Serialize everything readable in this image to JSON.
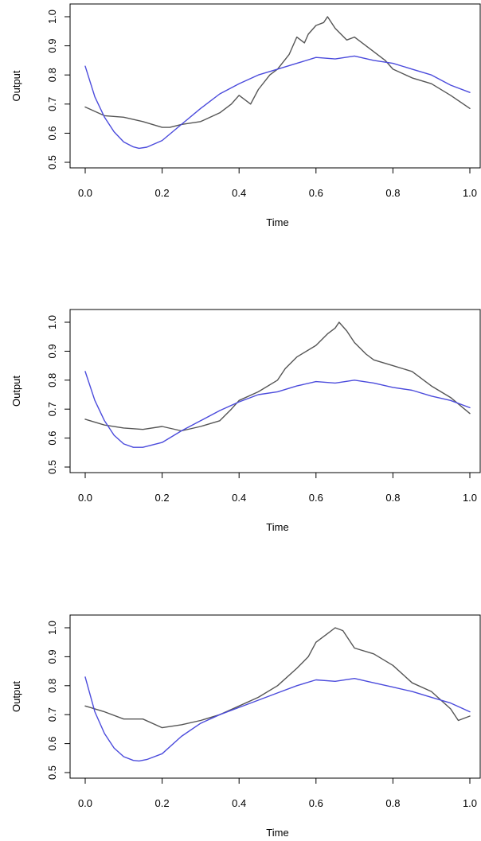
{
  "chart_data": [
    {
      "type": "line",
      "xlabel": "Time",
      "ylabel": "Output",
      "xlim": [
        0,
        1
      ],
      "ylim": [
        0.5,
        1.0
      ],
      "xticks": [
        "0.0",
        "0.2",
        "0.4",
        "0.6",
        "0.8",
        "1.0"
      ],
      "yticks": [
        "0.5",
        "0.6",
        "0.7",
        "0.8",
        "0.9",
        "1.0"
      ],
      "grid": false,
      "series": [
        {
          "color": "#555555",
          "x": [
            0.0,
            0.05,
            0.1,
            0.15,
            0.2,
            0.22,
            0.25,
            0.3,
            0.35,
            0.38,
            0.4,
            0.43,
            0.45,
            0.48,
            0.5,
            0.53,
            0.55,
            0.57,
            0.58,
            0.6,
            0.62,
            0.63,
            0.65,
            0.68,
            0.7,
            0.72,
            0.75,
            0.78,
            0.8,
            0.85,
            0.9,
            0.95,
            1.0
          ],
          "y": [
            0.69,
            0.66,
            0.655,
            0.64,
            0.62,
            0.62,
            0.63,
            0.64,
            0.67,
            0.7,
            0.73,
            0.7,
            0.75,
            0.8,
            0.82,
            0.87,
            0.93,
            0.91,
            0.94,
            0.97,
            0.98,
            1.0,
            0.96,
            0.92,
            0.93,
            0.91,
            0.88,
            0.85,
            0.82,
            0.79,
            0.77,
            0.73,
            0.685
          ]
        },
        {
          "color": "#4b4bdc",
          "x": [
            0.0,
            0.025,
            0.05,
            0.075,
            0.1,
            0.125,
            0.14,
            0.16,
            0.2,
            0.25,
            0.3,
            0.35,
            0.4,
            0.45,
            0.5,
            0.55,
            0.6,
            0.65,
            0.7,
            0.75,
            0.8,
            0.85,
            0.9,
            0.95,
            1.0
          ],
          "y": [
            0.83,
            0.725,
            0.655,
            0.605,
            0.57,
            0.553,
            0.548,
            0.552,
            0.575,
            0.63,
            0.685,
            0.735,
            0.77,
            0.8,
            0.82,
            0.84,
            0.86,
            0.855,
            0.865,
            0.85,
            0.84,
            0.82,
            0.8,
            0.765,
            0.74
          ]
        }
      ]
    },
    {
      "type": "line",
      "xlabel": "Time",
      "ylabel": "Output",
      "xlim": [
        0,
        1
      ],
      "ylim": [
        0.5,
        1.0
      ],
      "xticks": [
        "0.0",
        "0.2",
        "0.4",
        "0.6",
        "0.8",
        "1.0"
      ],
      "yticks": [
        "0.5",
        "0.6",
        "0.7",
        "0.8",
        "0.9",
        "1.0"
      ],
      "grid": false,
      "series": [
        {
          "color": "#555555",
          "x": [
            0.0,
            0.05,
            0.1,
            0.15,
            0.2,
            0.25,
            0.3,
            0.35,
            0.38,
            0.4,
            0.45,
            0.5,
            0.52,
            0.55,
            0.6,
            0.63,
            0.65,
            0.66,
            0.68,
            0.7,
            0.73,
            0.75,
            0.8,
            0.85,
            0.9,
            0.95,
            1.0
          ],
          "y": [
            0.665,
            0.645,
            0.635,
            0.63,
            0.64,
            0.625,
            0.64,
            0.66,
            0.7,
            0.73,
            0.76,
            0.8,
            0.84,
            0.88,
            0.92,
            0.96,
            0.98,
            1.0,
            0.97,
            0.93,
            0.89,
            0.87,
            0.85,
            0.83,
            0.78,
            0.74,
            0.685
          ]
        },
        {
          "color": "#4b4bdc",
          "x": [
            0.0,
            0.025,
            0.05,
            0.075,
            0.1,
            0.125,
            0.15,
            0.2,
            0.25,
            0.3,
            0.35,
            0.4,
            0.45,
            0.5,
            0.55,
            0.6,
            0.65,
            0.7,
            0.75,
            0.8,
            0.85,
            0.9,
            0.95,
            1.0
          ],
          "y": [
            0.83,
            0.73,
            0.66,
            0.61,
            0.58,
            0.568,
            0.568,
            0.585,
            0.625,
            0.66,
            0.695,
            0.725,
            0.75,
            0.76,
            0.78,
            0.795,
            0.79,
            0.8,
            0.79,
            0.775,
            0.765,
            0.745,
            0.73,
            0.705
          ]
        }
      ]
    },
    {
      "type": "line",
      "xlabel": "Time",
      "ylabel": "Output",
      "xlim": [
        0,
        1
      ],
      "ylim": [
        0.5,
        1.0
      ],
      "xticks": [
        "0.0",
        "0.2",
        "0.4",
        "0.6",
        "0.8",
        "1.0"
      ],
      "yticks": [
        "0.5",
        "0.6",
        "0.7",
        "0.8",
        "0.9",
        "1.0"
      ],
      "grid": false,
      "series": [
        {
          "color": "#555555",
          "x": [
            0.0,
            0.05,
            0.1,
            0.15,
            0.2,
            0.25,
            0.3,
            0.35,
            0.4,
            0.45,
            0.5,
            0.55,
            0.58,
            0.6,
            0.63,
            0.65,
            0.67,
            0.7,
            0.75,
            0.8,
            0.85,
            0.9,
            0.95,
            0.97,
            1.0
          ],
          "y": [
            0.73,
            0.71,
            0.685,
            0.685,
            0.655,
            0.665,
            0.68,
            0.7,
            0.73,
            0.76,
            0.8,
            0.86,
            0.9,
            0.95,
            0.98,
            1.0,
            0.99,
            0.93,
            0.91,
            0.87,
            0.81,
            0.78,
            0.72,
            0.68,
            0.695
          ]
        },
        {
          "color": "#4b4bdc",
          "x": [
            0.0,
            0.025,
            0.05,
            0.075,
            0.1,
            0.125,
            0.14,
            0.16,
            0.2,
            0.25,
            0.3,
            0.35,
            0.4,
            0.45,
            0.5,
            0.55,
            0.6,
            0.65,
            0.7,
            0.75,
            0.8,
            0.85,
            0.9,
            0.95,
            1.0
          ],
          "y": [
            0.83,
            0.71,
            0.635,
            0.585,
            0.555,
            0.542,
            0.54,
            0.545,
            0.565,
            0.625,
            0.67,
            0.7,
            0.725,
            0.75,
            0.775,
            0.8,
            0.82,
            0.815,
            0.825,
            0.81,
            0.795,
            0.78,
            0.76,
            0.74,
            0.71
          ]
        }
      ]
    }
  ]
}
